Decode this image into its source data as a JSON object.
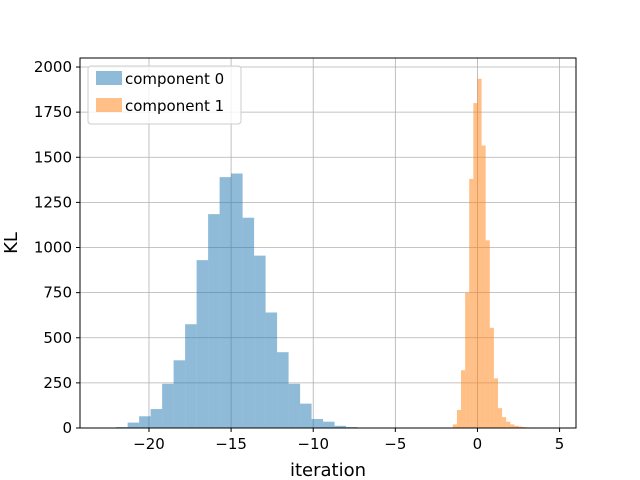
{
  "chart_data": {
    "type": "histogram",
    "xlabel": "iteration",
    "ylabel": "KL",
    "xlim": [
      -24.2,
      6.0
    ],
    "ylim": [
      0,
      2050
    ],
    "xticks": [
      -20,
      -15,
      -10,
      -5,
      0,
      5
    ],
    "xtick_labels": [
      "−20",
      "−15",
      "−10",
      "−5",
      "0",
      "5"
    ],
    "yticks": [
      0,
      250,
      500,
      750,
      1000,
      1250,
      1500,
      1750,
      2000
    ],
    "ytick_labels": [
      "0",
      "250",
      "500",
      "750",
      "1000",
      "1250",
      "1500",
      "1750",
      "2000"
    ],
    "grid": true,
    "legend": {
      "position": "top-left"
    },
    "series": [
      {
        "name": "component 0",
        "color": "#1f77b4",
        "alpha": 0.5,
        "bins": [
          {
            "x0": -22.0,
            "x1": -21.3,
            "count": 5
          },
          {
            "x0": -21.3,
            "x1": -20.6,
            "count": 30
          },
          {
            "x0": -20.6,
            "x1": -19.9,
            "count": 65
          },
          {
            "x0": -19.9,
            "x1": -19.2,
            "count": 105
          },
          {
            "x0": -19.2,
            "x1": -18.5,
            "count": 245
          },
          {
            "x0": -18.5,
            "x1": -17.8,
            "count": 375
          },
          {
            "x0": -17.8,
            "x1": -17.1,
            "count": 575
          },
          {
            "x0": -17.1,
            "x1": -16.4,
            "count": 930
          },
          {
            "x0": -16.4,
            "x1": -15.7,
            "count": 1185
          },
          {
            "x0": -15.7,
            "x1": -15.0,
            "count": 1390
          },
          {
            "x0": -15.0,
            "x1": -14.3,
            "count": 1410
          },
          {
            "x0": -14.3,
            "x1": -13.6,
            "count": 1165
          },
          {
            "x0": -13.6,
            "x1": -12.9,
            "count": 955
          },
          {
            "x0": -12.9,
            "x1": -12.2,
            "count": 640
          },
          {
            "x0": -12.2,
            "x1": -11.5,
            "count": 420
          },
          {
            "x0": -11.5,
            "x1": -10.8,
            "count": 245
          },
          {
            "x0": -10.8,
            "x1": -10.1,
            "count": 135
          },
          {
            "x0": -10.1,
            "x1": -9.4,
            "count": 50
          },
          {
            "x0": -9.4,
            "x1": -8.7,
            "count": 35
          },
          {
            "x0": -8.7,
            "x1": -8.0,
            "count": 12
          },
          {
            "x0": -8.0,
            "x1": -7.3,
            "count": 5
          }
        ]
      },
      {
        "name": "component 1",
        "color": "#ff7f0e",
        "alpha": 0.5,
        "bins": [
          {
            "x0": -1.5,
            "x1": -1.25,
            "count": 20
          },
          {
            "x0": -1.25,
            "x1": -1.0,
            "count": 100
          },
          {
            "x0": -1.0,
            "x1": -0.75,
            "count": 320
          },
          {
            "x0": -0.75,
            "x1": -0.5,
            "count": 750
          },
          {
            "x0": -0.5,
            "x1": -0.25,
            "count": 1380
          },
          {
            "x0": -0.25,
            "x1": 0.0,
            "count": 1800
          },
          {
            "x0": 0.0,
            "x1": 0.25,
            "count": 1935
          },
          {
            "x0": 0.25,
            "x1": 0.5,
            "count": 1565
          },
          {
            "x0": 0.5,
            "x1": 0.75,
            "count": 1040
          },
          {
            "x0": 0.75,
            "x1": 1.0,
            "count": 555
          },
          {
            "x0": 1.0,
            "x1": 1.25,
            "count": 275
          },
          {
            "x0": 1.25,
            "x1": 1.5,
            "count": 110
          },
          {
            "x0": 1.5,
            "x1": 1.75,
            "count": 60
          },
          {
            "x0": 1.75,
            "x1": 2.0,
            "count": 35
          },
          {
            "x0": 2.0,
            "x1": 2.25,
            "count": 20
          },
          {
            "x0": 2.25,
            "x1": 2.5,
            "count": 12
          },
          {
            "x0": 2.5,
            "x1": 2.75,
            "count": 8
          },
          {
            "x0": 2.75,
            "x1": 3.0,
            "count": 5
          },
          {
            "x0": 3.0,
            "x1": 3.25,
            "count": 3
          },
          {
            "x0": 3.25,
            "x1": 3.5,
            "count": 2
          }
        ]
      }
    ]
  }
}
